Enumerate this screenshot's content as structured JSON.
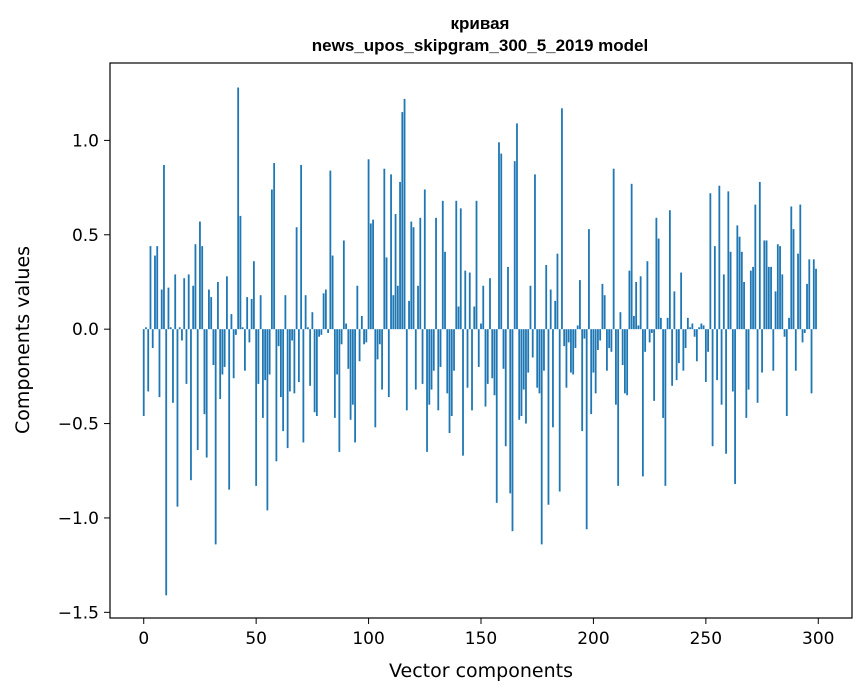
{
  "chart_data": {
    "type": "bar",
    "title": "кривая",
    "subtitle": "news_upos_skipgram_300_5_2019 model",
    "xlabel": "Vector components",
    "ylabel": "Components values",
    "xlim": [
      -15,
      315
    ],
    "ylim": [
      -1.53,
      1.41
    ],
    "xticks": [
      0,
      50,
      100,
      150,
      200,
      250,
      300
    ],
    "yticks": [
      -1.5,
      -1.0,
      -0.5,
      0.0,
      0.5,
      1.0
    ],
    "ytick_labels": [
      "−1.5",
      "−1.0",
      "−0.5",
      "0.0",
      "0.5",
      "1.0"
    ],
    "grid": false,
    "bar_color": "#1f77b4",
    "x_start": 0,
    "values": [
      -0.46,
      0.01,
      -0.33,
      0.44,
      -0.1,
      0.39,
      0.44,
      -0.36,
      0.21,
      0.87,
      -1.41,
      0.22,
      0.01,
      -0.39,
      0.29,
      -0.94,
      0.01,
      -0.06,
      0.27,
      -0.29,
      0.29,
      -0.8,
      0.23,
      0.45,
      -0.64,
      0.57,
      0.44,
      -0.45,
      -0.68,
      0.21,
      0.17,
      -0.19,
      -1.14,
      0.25,
      -0.37,
      -0.24,
      -0.2,
      0.28,
      -0.85,
      0.08,
      -0.26,
      -0.03,
      1.28,
      0.6,
      0.01,
      -0.22,
      0.17,
      -0.07,
      0.16,
      0.36,
      -0.83,
      -0.29,
      0.18,
      -0.47,
      -0.27,
      -0.96,
      -0.24,
      0.74,
      0.88,
      -0.7,
      -0.09,
      -0.36,
      -0.54,
      0.18,
      -0.63,
      -0.33,
      -0.06,
      -0.34,
      0.54,
      -0.28,
      0.87,
      -0.6,
      0.18,
      0.01,
      -0.3,
      0.09,
      -0.44,
      -0.46,
      -0.04,
      -0.03,
      0.19,
      0.21,
      -0.02,
      0.84,
      0.39,
      -0.47,
      -0.24,
      -0.65,
      -0.08,
      0.47,
      0.03,
      -0.21,
      -0.48,
      -0.4,
      -0.6,
      0.23,
      -0.17,
      0.07,
      -0.08,
      -0.07,
      0.9,
      0.56,
      0.58,
      -0.52,
      -0.16,
      -0.08,
      -0.32,
      0.85,
      0.38,
      -0.36,
      0.82,
      0.18,
      0.61,
      0.23,
      0.78,
      1.15,
      1.22,
      -0.43,
      0.15,
      0.57,
      0.54,
      -0.32,
      0.23,
      0.59,
      -0.29,
      0.74,
      -0.65,
      -0.4,
      -0.32,
      -0.22,
      0.59,
      -0.43,
      -0.2,
      0.68,
      0.41,
      -0.34,
      -0.55,
      -0.46,
      -0.22,
      0.68,
      0.12,
      0.64,
      -0.67,
      0.31,
      -0.31,
      0.3,
      -0.43,
      0.12,
      0.68,
      -0.2,
      0.03,
      0.23,
      -0.41,
      -0.29,
      0.27,
      -0.26,
      -0.35,
      -0.92,
      0.99,
      0.93,
      -0.21,
      -0.62,
      0.33,
      -0.87,
      -1.07,
      0.89,
      1.09,
      -0.48,
      -0.46,
      -0.32,
      -0.5,
      -0.23,
      0.23,
      -0.15,
      0.82,
      -0.31,
      -0.34,
      -1.14,
      -0.22,
      0.34,
      -0.93,
      0.21,
      -0.52,
      0.15,
      0.4,
      -0.86,
      1.17,
      -0.09,
      -0.31,
      -0.07,
      -0.23,
      -0.24,
      -0.1,
      0.02,
      0.26,
      -0.54,
      -0.05,
      -1.06,
      0.53,
      -0.45,
      -0.23,
      -0.34,
      -0.11,
      -0.06,
      0.24,
      0.18,
      -0.22,
      -0.1,
      -0.12,
      0.85,
      -0.4,
      -0.83,
      0.09,
      -0.19,
      -0.34,
      -0.35,
      0.31,
      0.77,
      0.07,
      0.25,
      0.02,
      0.28,
      -0.78,
      -0.12,
      0.36,
      -0.07,
      -0.02,
      -0.38,
      0.59,
      0.48,
      0.06,
      -0.47,
      -0.83,
      0.06,
      0.63,
      -0.3,
      0.2,
      -0.27,
      -0.18,
      0.3,
      -0.22,
      -0.1,
      0.06,
      0.01,
      0.03,
      -0.04,
      -0.17,
      0.01,
      0.03,
      0.02,
      -0.28,
      -0.12,
      0.72,
      -0.62,
      0.44,
      -0.27,
      0.76,
      -0.4,
      0.29,
      -0.66,
      0.73,
      0.41,
      -0.33,
      -0.82,
      0.55,
      0.49,
      0.41,
      0.25,
      -0.47,
      -0.32,
      0.31,
      0.33,
      0.66,
      -0.39,
      0.78,
      -0.23,
      0.47,
      0.47,
      0.33,
      0.33,
      -0.22,
      0.2,
      0.45,
      0.44,
      0.29,
      -0.04,
      -0.46,
      0.06,
      0.65,
      0.53,
      -0.22,
      0.4,
      0.66,
      -0.07,
      -0.02,
      0.24,
      0.37,
      -0.34,
      0.37,
      0.32
    ]
  }
}
